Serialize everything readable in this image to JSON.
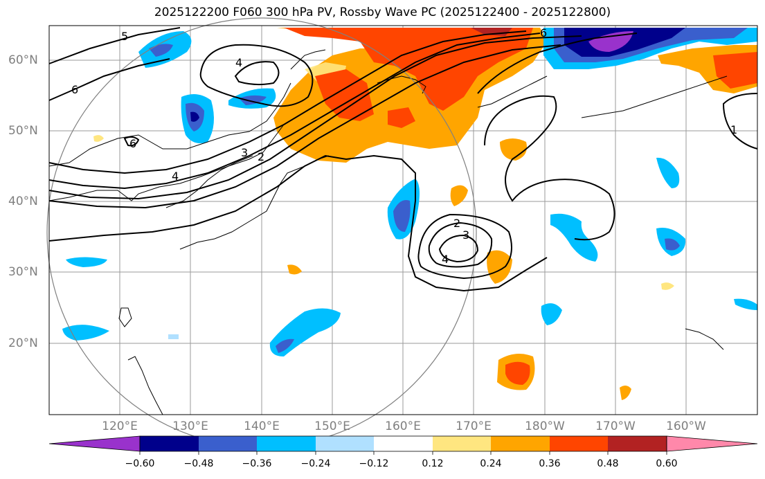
{
  "title": "2025122200 F060 300 hPa PV, Rossby Wave PC (2025122400 - 2025122800)",
  "lat_labels": [
    "60°N",
    "50°N",
    "40°N",
    "30°N",
    "20°N"
  ],
  "lon_labels": [
    "120°E",
    "130°E",
    "140°E",
    "150°E",
    "160°E",
    "170°E",
    "180°W",
    "170°W",
    "160°W"
  ],
  "contour_labels": [
    "5",
    "6",
    "4",
    "6",
    "4",
    "3",
    "2",
    "2",
    "3",
    "4",
    "6",
    "1"
  ],
  "colorbar": {
    "ticks": [
      "−0.60",
      "−0.48",
      "−0.36",
      "−0.24",
      "−0.12",
      "0.12",
      "0.24",
      "0.36",
      "0.48",
      "0.60"
    ],
    "colors": [
      "#9932cc",
      "#00008b",
      "#3a5fcd",
      "#00bfff",
      "#b0e0ff",
      "#ffffff",
      "#ffe680",
      "#ffa500",
      "#ff4500",
      "#b22222",
      "#ff88aa"
    ]
  },
  "colors": {
    "purple": "#9932cc",
    "navy": "#00008b",
    "blue": "#3a5fcd",
    "sky": "#00bfff",
    "lightblue": "#b0e0ff",
    "yellow": "#ffe680",
    "orange": "#ffa500",
    "redorange": "#ff4500",
    "darkred": "#b22222",
    "pink": "#ff88aa"
  }
}
